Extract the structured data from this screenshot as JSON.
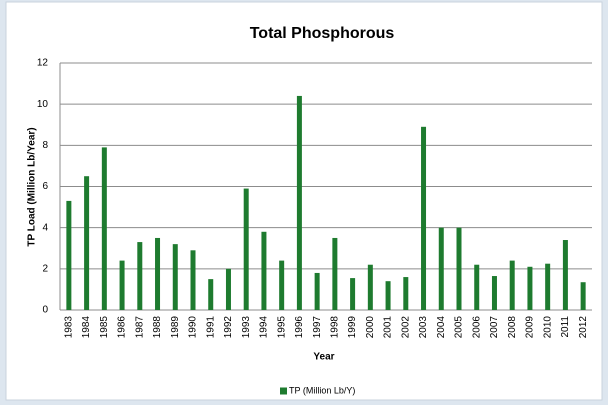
{
  "chart_data": {
    "type": "bar",
    "title": "Total Phosphorous",
    "y_label": "TP Load (Million Lb/Year)",
    "x_label": "Year",
    "categories": [
      "1983",
      "1984",
      "1985",
      "1986",
      "1987",
      "1988",
      "1989",
      "1990",
      "1991",
      "1992",
      "1993",
      "1994",
      "1995",
      "1996",
      "1997",
      "1998",
      "1999",
      "2000",
      "2001",
      "2002",
      "2003",
      "2004",
      "2005",
      "2006",
      "2007",
      "2008",
      "2009",
      "2010",
      "2011",
      "2012"
    ],
    "series": [
      {
        "name": "TP (Million Lb/Y)",
        "color": "#1e7b2f",
        "values": [
          5.3,
          6.5,
          7.9,
          2.4,
          3.3,
          3.5,
          3.2,
          2.9,
          1.5,
          2.0,
          5.9,
          3.8,
          2.4,
          10.4,
          1.8,
          3.5,
          1.55,
          2.2,
          1.4,
          1.6,
          8.9,
          4.0,
          4.0,
          2.2,
          1.65,
          2.4,
          2.1,
          2.25,
          3.4,
          1.35
        ]
      }
    ],
    "ylim": [
      0,
      12
    ],
    "yticks": [
      0,
      2,
      4,
      6,
      8,
      10,
      12
    ],
    "grid": true,
    "legend": "bottom"
  }
}
